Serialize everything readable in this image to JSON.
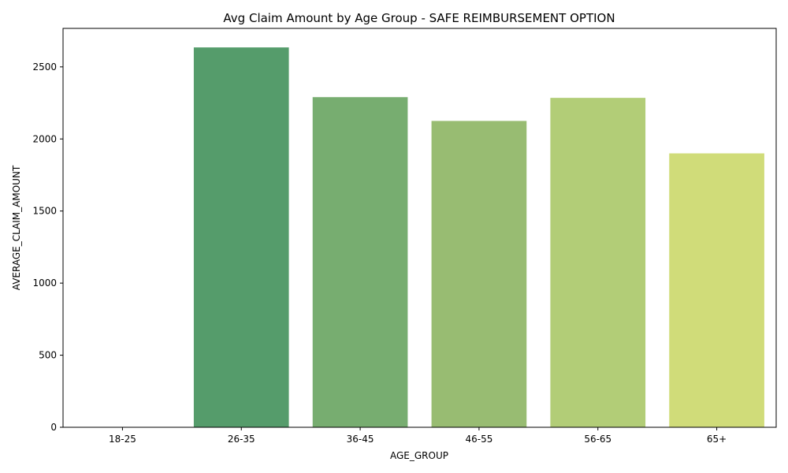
{
  "chart_data": {
    "type": "bar",
    "title": "Avg Claim Amount by Age Group - SAFE REIMBURSEMENT OPTION",
    "xlabel": "AGE_GROUP",
    "ylabel": "AVERAGE_CLAIM_AMOUNT",
    "categories": [
      "18-25",
      "26-35",
      "36-45",
      "46-55",
      "56-65",
      "65+"
    ],
    "values": [
      0,
      2635,
      2290,
      2125,
      2285,
      1900
    ],
    "colors": [
      "#3e8d5a",
      "#559c6b",
      "#77ad70",
      "#98bc72",
      "#b2cd77",
      "#d0dc79"
    ],
    "ylim": [
      0,
      2767
    ],
    "yticks": [
      0,
      500,
      1000,
      1500,
      2000,
      2500
    ],
    "grid": false,
    "legend": "none"
  }
}
